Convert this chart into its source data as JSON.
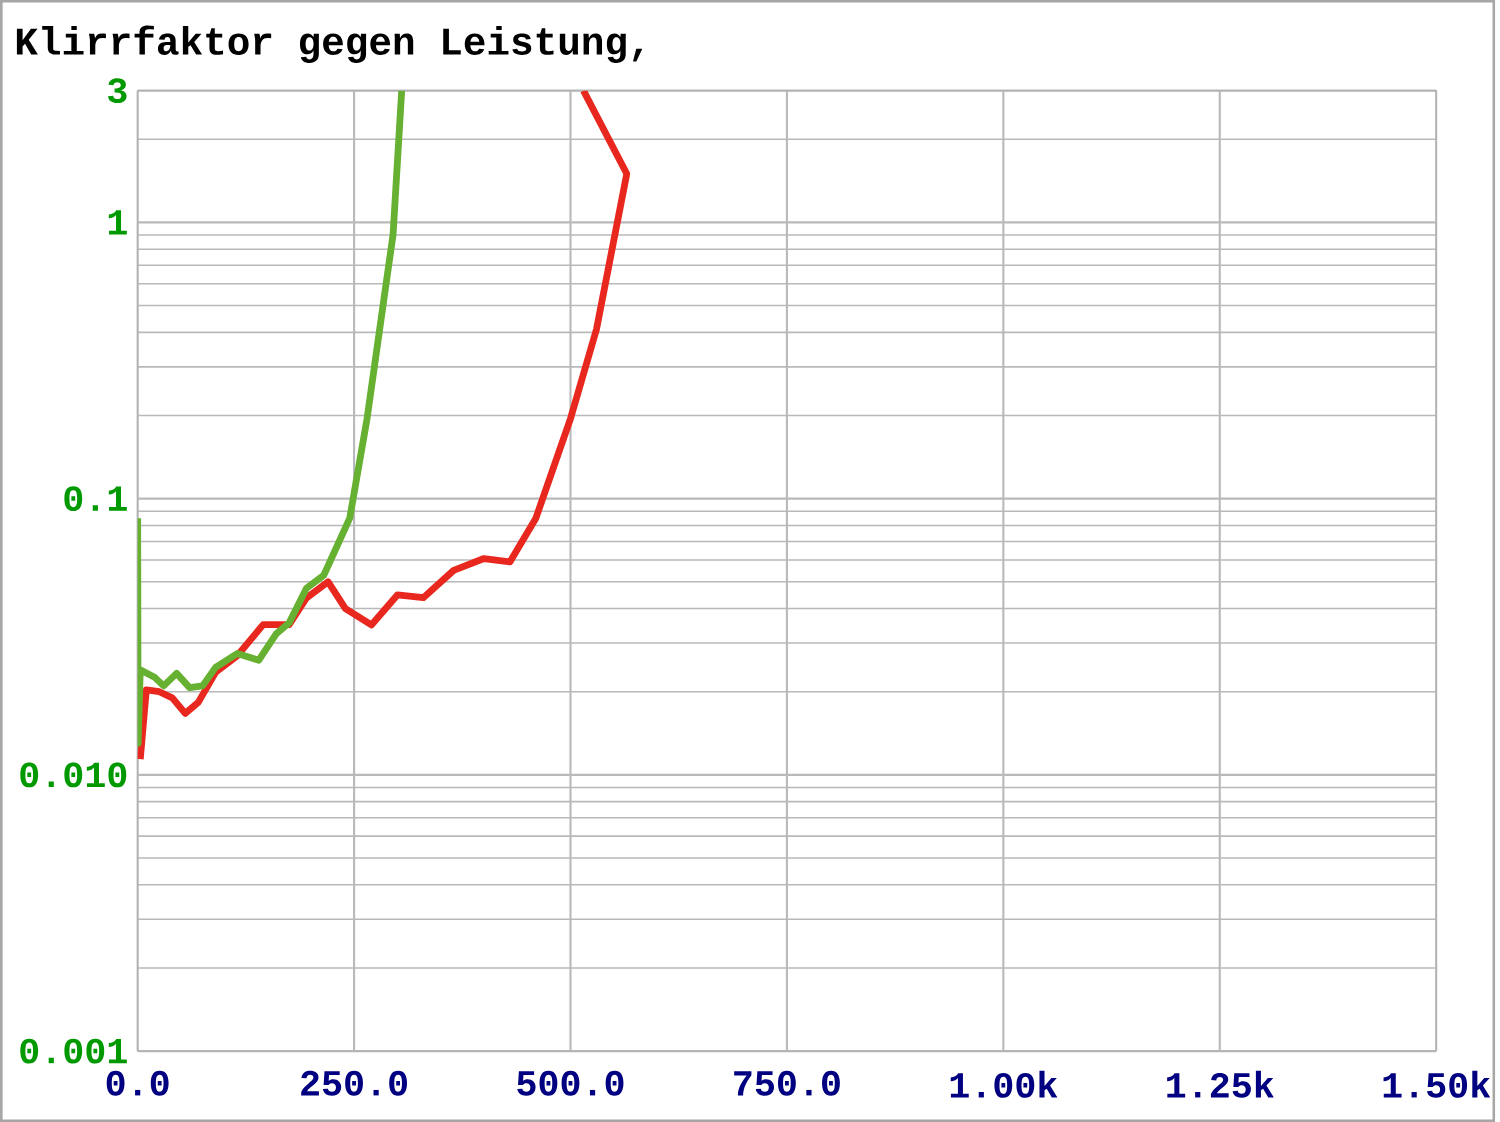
{
  "chart_data": {
    "type": "line",
    "title": "Klirrfaktor gegen Leistung,",
    "log": "y",
    "grid": true,
    "xlim": [
      0,
      1500
    ],
    "xticks": [
      {
        "value": 0,
        "label": "0.0"
      },
      {
        "value": 250,
        "label": "250.0"
      },
      {
        "value": 500,
        "label": "500.0"
      },
      {
        "value": 750,
        "label": "750.0"
      },
      {
        "value": 1000,
        "label": "1.00k"
      },
      {
        "value": 1250,
        "label": "1.25k"
      },
      {
        "value": 1500,
        "label": "1.50k"
      }
    ],
    "ylim": [
      0.001,
      3
    ],
    "yticks": [
      {
        "value": 0.001,
        "label": "0.001"
      },
      {
        "value": 0.01,
        "label": "0.010"
      },
      {
        "value": 0.1,
        "label": "0.1"
      },
      {
        "value": 1,
        "label": "1"
      },
      {
        "value": 3,
        "label": "3"
      }
    ],
    "series": [
      {
        "color": "#e8281e",
        "x": [
          3,
          10,
          25,
          40,
          55,
          70,
          90,
          115,
          145,
          175,
          195,
          220,
          240,
          270,
          300,
          330,
          365,
          400,
          430,
          460,
          500,
          530,
          565,
          515
        ],
        "values": [
          0.0114,
          0.0203,
          0.02,
          0.019,
          0.0167,
          0.0183,
          0.0235,
          0.027,
          0.035,
          0.035,
          0.0437,
          0.05,
          0.04,
          0.0349,
          0.0448,
          0.0438,
          0.055,
          0.0607,
          0.059,
          0.085,
          0.195,
          0.41,
          1.5,
          3
        ]
      },
      {
        "color": "#66b032",
        "x": [
          0,
          0.5,
          3,
          20,
          30,
          45,
          60,
          75,
          90,
          115,
          140,
          160,
          175,
          195,
          215,
          245,
          265,
          290,
          295,
          305
        ],
        "values": [
          0.085,
          0.013,
          0.024,
          0.0225,
          0.021,
          0.0233,
          0.0207,
          0.021,
          0.0245,
          0.0275,
          0.026,
          0.0324,
          0.0355,
          0.0474,
          0.0528,
          0.085,
          0.195,
          0.7,
          0.9,
          3
        ]
      }
    ]
  }
}
